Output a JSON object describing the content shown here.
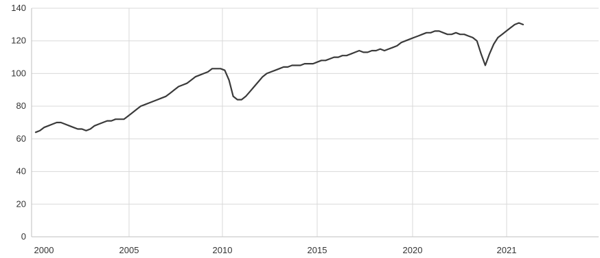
{
  "chart_data": {
    "type": "line",
    "title": "",
    "xlabel": "",
    "ylabel": "",
    "ylim": [
      0,
      140
    ],
    "y_ticks": [
      "0",
      "20",
      "40",
      "60",
      "80",
      "100",
      "120",
      "140"
    ],
    "x_ticks": [
      "2000",
      "2005",
      "2010",
      "2015",
      "2020",
      "2021"
    ],
    "grid": true,
    "legend": "none",
    "colors": {
      "line": "#3a3a3a",
      "grid": "#d9d9d9",
      "axis": "#bfbfbf",
      "text": "#333333"
    },
    "series": [
      {
        "values": [
          64,
          65,
          67,
          68,
          69,
          70,
          70,
          69,
          68,
          67,
          66,
          66,
          65,
          66,
          68,
          69,
          70,
          71,
          71,
          72,
          72,
          72,
          74,
          76,
          78,
          80,
          81,
          82,
          83,
          84,
          85,
          86,
          88,
          90,
          92,
          93,
          94,
          96,
          98,
          99,
          100,
          101,
          103,
          103,
          103,
          102,
          96,
          86,
          84,
          84,
          86,
          89,
          92,
          95,
          98,
          100,
          101,
          102,
          103,
          104,
          104,
          105,
          105,
          105,
          106,
          106,
          106,
          107,
          108,
          108,
          109,
          110,
          110,
          111,
          111,
          112,
          113,
          114,
          113,
          113,
          114,
          114,
          115,
          114,
          115,
          116,
          117,
          119,
          120,
          121,
          122,
          123,
          124,
          125,
          125,
          126,
          126,
          125,
          124,
          124,
          125,
          124,
          124,
          123,
          122,
          120,
          112,
          105,
          112,
          118,
          122,
          124,
          126,
          128,
          130,
          131,
          130
        ]
      }
    ]
  }
}
